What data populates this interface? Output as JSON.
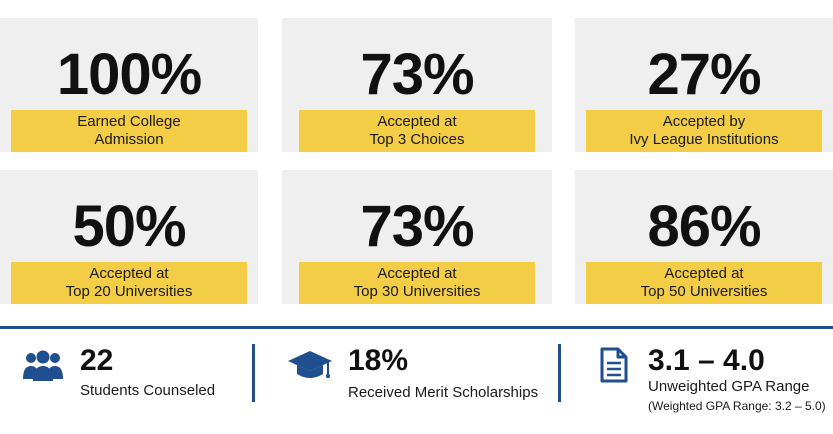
{
  "cards": [
    {
      "value": "100%",
      "label": "Earned College\nAdmission"
    },
    {
      "value": "73%",
      "label": "Accepted at\nTop 3 Choices"
    },
    {
      "value": "27%",
      "label": "Accepted by\nIvy League Institutions"
    },
    {
      "value": "50%",
      "label": "Accepted at\nTop 20 Universities"
    },
    {
      "value": "73%",
      "label": "Accepted at\nTop 30 Universities"
    },
    {
      "value": "86%",
      "label": "Accepted at\nTop 50 Universities"
    }
  ],
  "stats": [
    {
      "icon": "people-group-icon",
      "value": "22",
      "label": "Students Counseled"
    },
    {
      "icon": "graduation-cap-icon",
      "value": "18%",
      "label": "Received Merit Scholarships"
    },
    {
      "icon": "document-icon",
      "value": "3.1 – 4.0",
      "label": "Unweighted GPA Range",
      "note": "(Weighted GPA Range: 3.2 – 5.0)"
    }
  ],
  "colors": {
    "card_background": "#efefef",
    "label_highlight": "#f2cd45",
    "accent_blue": "#1f4f8f"
  }
}
